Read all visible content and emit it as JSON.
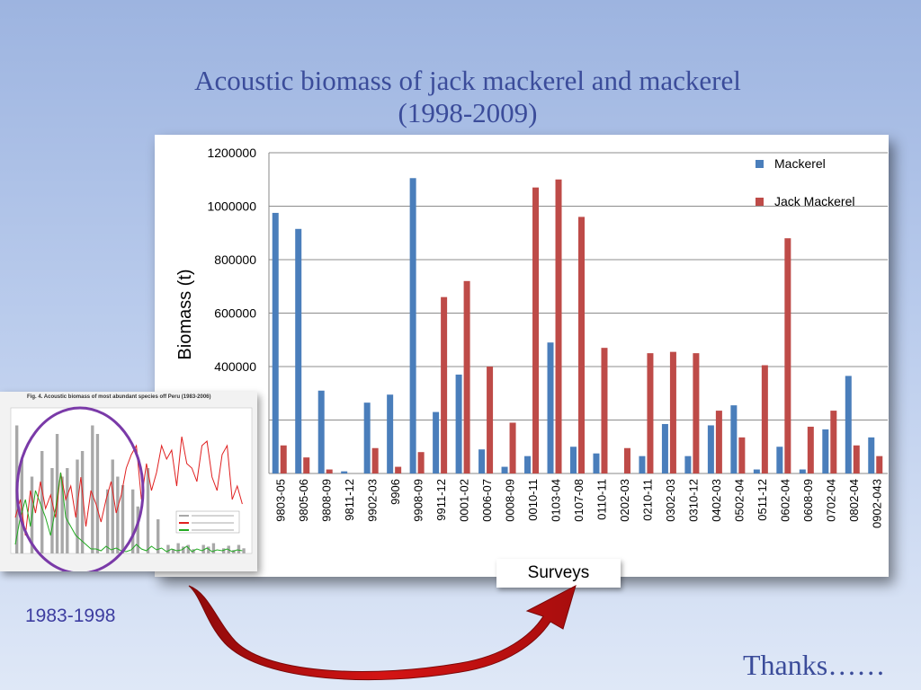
{
  "slide": {
    "title_line1": "Acoustic biomass of jack mackerel and mackerel",
    "title_line2": "(1998-2009)",
    "period_label": "1983-1998",
    "thanks": "Thanks……"
  },
  "inset": {
    "title": "Fig. 4.  Acoustic biomass of most abundant  species off Peru (1983-2006)"
  },
  "chart_data": {
    "type": "bar",
    "xlabel": "Surveys",
    "ylabel": "Biomass (t)",
    "ylim": [
      0,
      1200000
    ],
    "yticks": [
      "1200000",
      "1000000",
      "800000",
      "600000",
      "400000"
    ],
    "grid": true,
    "legend_position": "top-right",
    "categories": [
      "9803-05",
      "9805-06",
      "9808-09",
      "9811-12",
      "9902-03",
      "9906",
      "9908-09",
      "9911-12",
      "0001-02",
      "0006-07",
      "0008-09",
      "0010-11",
      "0103-04",
      "0107-08",
      "0110-11",
      "0202-03",
      "0210-11",
      "0302-03",
      "0310-12",
      "0402-03",
      "0502-04",
      "0511-12",
      "0602-04",
      "0608-09",
      "0702-04",
      "0802-04",
      "0902-043"
    ],
    "series": [
      {
        "name": "Mackerel",
        "color": "#4a7ebb",
        "values": [
          975000,
          915000,
          310000,
          8000,
          265000,
          295000,
          1105000,
          230000,
          370000,
          90000,
          25000,
          65000,
          490000,
          100000,
          75000,
          0,
          65000,
          185000,
          65000,
          180000,
          255000,
          15000,
          100000,
          15000,
          165000,
          365000,
          135000
        ]
      },
      {
        "name": "Jack Mackerel",
        "color": "#be4b48",
        "values": [
          105000,
          60000,
          15000,
          0,
          95000,
          25000,
          80000,
          660000,
          720000,
          400000,
          190000,
          1070000,
          1100000,
          960000,
          470000,
          95000,
          450000,
          455000,
          450000,
          235000,
          135000,
          405000,
          880000,
          175000,
          235000,
          105000,
          65000
        ]
      }
    ]
  }
}
